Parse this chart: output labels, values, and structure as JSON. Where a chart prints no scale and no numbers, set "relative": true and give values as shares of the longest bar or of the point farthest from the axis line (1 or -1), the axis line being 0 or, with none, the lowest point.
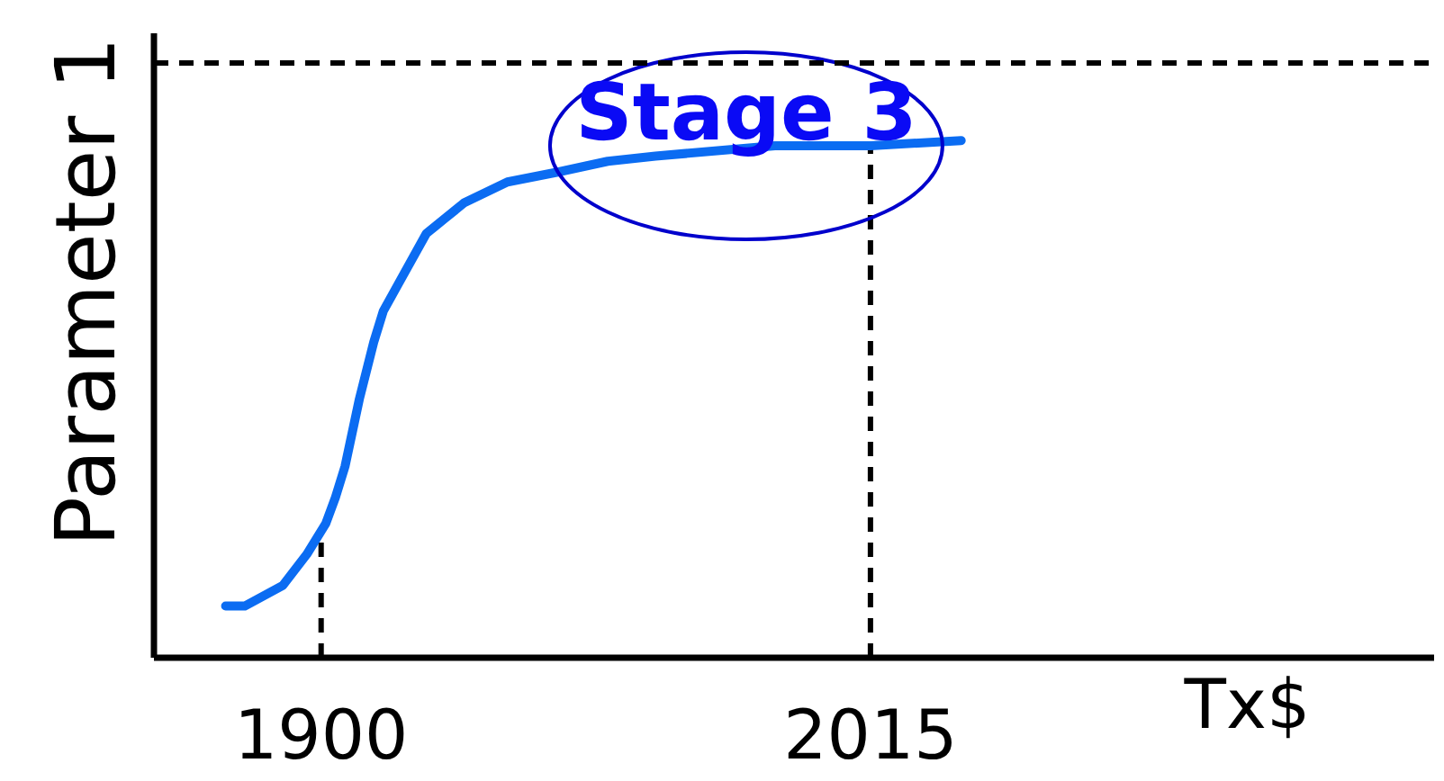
{
  "chart_data": {
    "type": "line",
    "ylabel": "Parameter 1",
    "xlabel": "Tx$",
    "relative": true,
    "x": [
      1880,
      1884,
      1888,
      1892,
      1897,
      1901,
      1903,
      1905,
      1908,
      1911,
      1913,
      1916,
      1922,
      1926,
      1930,
      1939,
      1950,
      1960,
      1970,
      1995,
      2015,
      2034
    ],
    "xlim": [
      1865,
      2133
    ],
    "xticks": [
      1900,
      2015
    ],
    "series": [
      {
        "color": "#0b6cf2",
        "values": [
          0.1,
          0.1,
          0.12,
          0.14,
          0.2,
          0.26,
          0.31,
          0.37,
          0.5,
          0.61,
          0.67,
          0.72,
          0.82,
          0.85,
          0.88,
          0.92,
          0.94,
          0.96,
          0.97,
          0.99,
          0.99,
          1.0
        ]
      }
    ],
    "ref_lines": [
      {
        "axis": "y",
        "value": 1.15,
        "line_style": "dashed",
        "color": "#000000"
      },
      {
        "axis": "x",
        "value": 1900,
        "line_style": "dashed",
        "color": "#000000"
      },
      {
        "axis": "x",
        "value": 2015,
        "line_style": "dashed",
        "color": "#000000"
      }
    ],
    "annotations": [
      {
        "text": "Stage 3",
        "x": 1989,
        "y": 0.99
      }
    ]
  }
}
